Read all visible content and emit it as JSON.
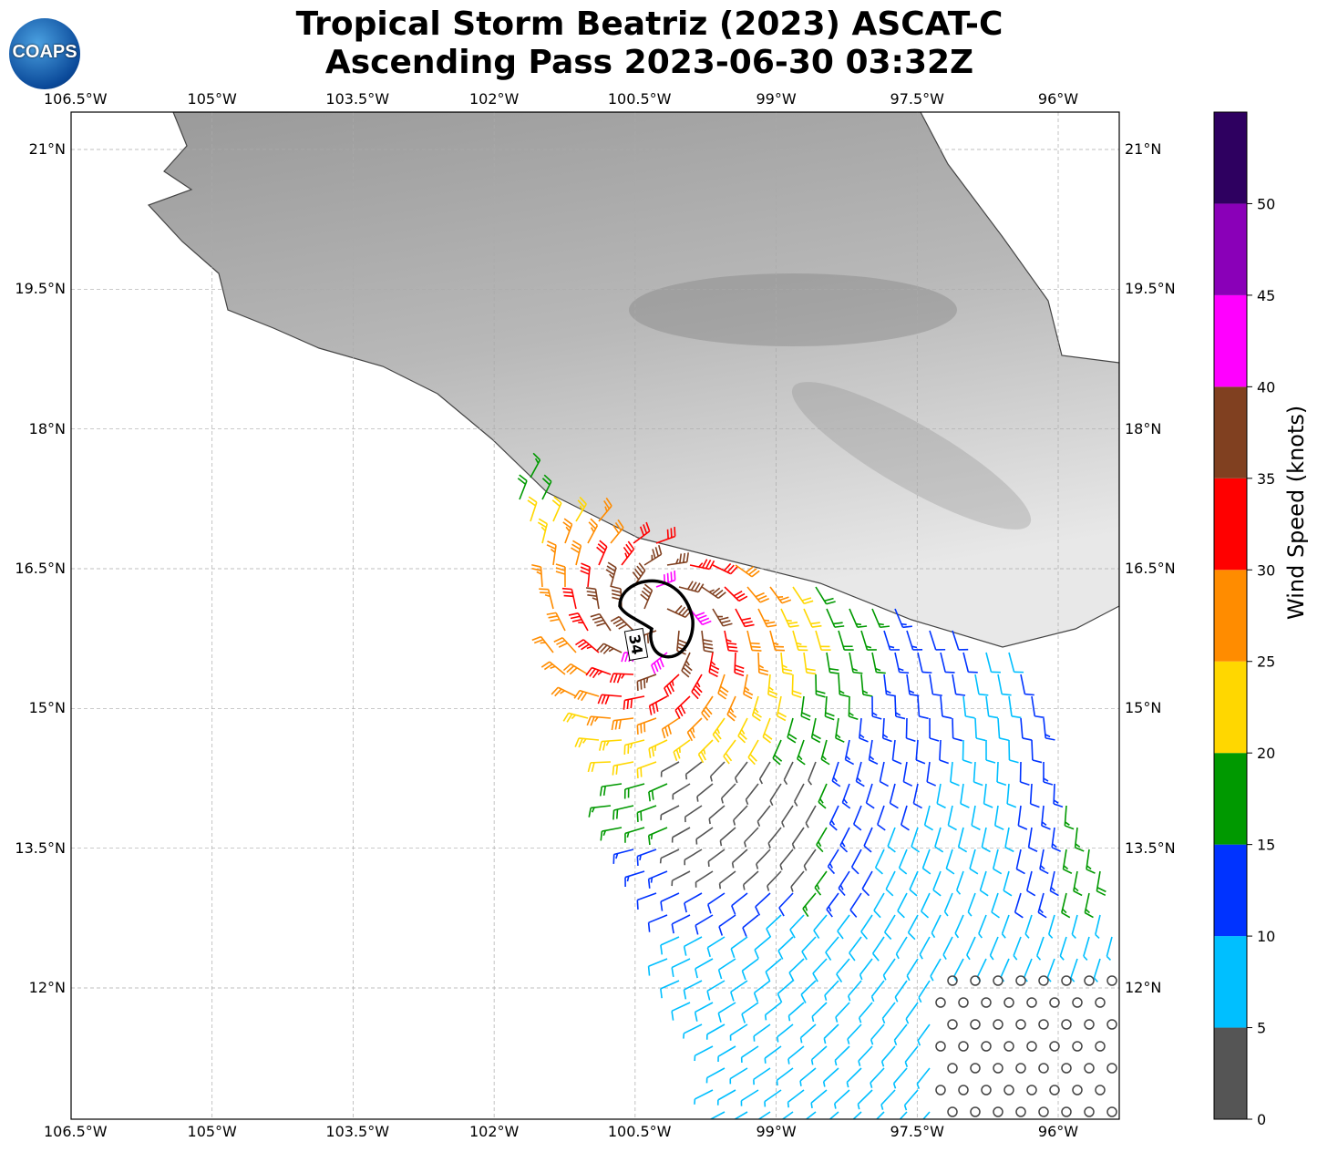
{
  "header": {
    "title_line1": "Tropical Storm Beatriz (2023) ASCAT-C",
    "title_line2": "Ascending Pass 2023-06-30 03:32Z",
    "logo_text": "COAPS"
  },
  "chart_data": {
    "type": "map-wind-barbs",
    "title": "Tropical Storm Beatriz (2023) ASCAT-C Ascending Pass 2023-06-30 03:32Z",
    "lon_ticks": [
      "106.5°W",
      "105°W",
      "103.5°W",
      "102°W",
      "100.5°W",
      "99°W",
      "97.5°W",
      "96°W"
    ],
    "lon_values": [
      -106.5,
      -105,
      -103.5,
      -102,
      -100.5,
      -99,
      -97.5,
      -96
    ],
    "lat_ticks": [
      "21°N",
      "19.5°N",
      "18°N",
      "16.5°N",
      "15°N",
      "13.5°N",
      "12°N"
    ],
    "lat_values": [
      21,
      19.5,
      18,
      16.5,
      15,
      13.5,
      12
    ],
    "lon_range": [
      -106.5,
      -95.25
    ],
    "lat_range": [
      10.6,
      21.4
    ],
    "grid": true,
    "contour_label": "34",
    "storm_center": {
      "lon": -100.2,
      "lat": 16.0
    },
    "colorbar": {
      "label": "Wind Speed (knots)",
      "ticks": [
        "0",
        "5",
        "10",
        "15",
        "20",
        "25",
        "30",
        "35",
        "40",
        "45",
        "50"
      ],
      "bounds": [
        0,
        5,
        10,
        15,
        20,
        25,
        30,
        35,
        40,
        45,
        50,
        55
      ],
      "colors": [
        "#555555",
        "#00bfff",
        "#0033ff",
        "#009900",
        "#ffd700",
        "#ff8c00",
        "#ff0000",
        "#804020",
        "#ff00ff",
        "#8a00b8",
        "#2e0060"
      ]
    }
  }
}
